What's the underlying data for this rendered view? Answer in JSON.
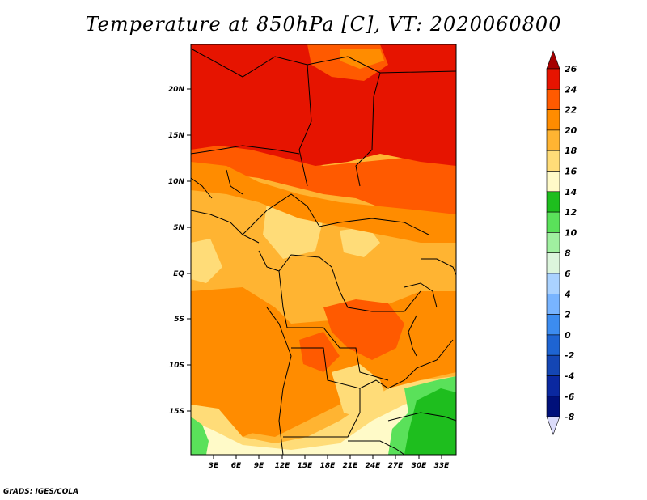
{
  "title": "Temperature at 850hPa [C], VT: 2020060800",
  "credit": "GrADS: IGES/COLA",
  "map": {
    "lat_ticks": [
      "20N",
      "15N",
      "10N",
      "5N",
      "EQ",
      "5S",
      "10S",
      "15S"
    ],
    "lon_ticks": [
      "3E",
      "6E",
      "9E",
      "12E",
      "15E",
      "18E",
      "21E",
      "24E",
      "27E",
      "30E",
      "33E"
    ]
  },
  "colorbar": {
    "labels": [
      "26",
      "24",
      "22",
      "20",
      "18",
      "16",
      "14",
      "12",
      "10",
      "8",
      "6",
      "4",
      "2",
      "0",
      "-2",
      "-4",
      "-6",
      "-8"
    ],
    "colors": [
      "#a50000",
      "#e61400",
      "#ff5a00",
      "#ff8c00",
      "#ffb432",
      "#ffdc78",
      "#fffac8",
      "#1ebe1e",
      "#5ae15a",
      "#a0f0a0",
      "#dcf5dc",
      "#aad2ff",
      "#78b4ff",
      "#3c8cf0",
      "#1e64d2",
      "#1446b4",
      "#0a28a0",
      "#00107a",
      "#dcdcfa"
    ]
  }
}
